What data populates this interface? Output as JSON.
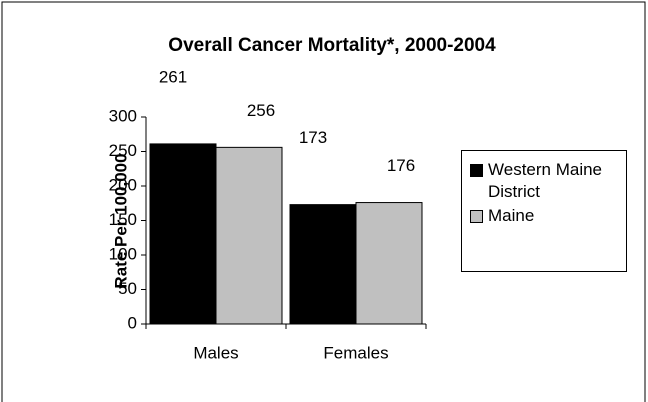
{
  "chart_data": {
    "type": "bar",
    "title": "Overall Cancer Mortality*, 2000-2004",
    "y_label": "Rate Per 100,000",
    "categories": [
      "Males",
      "Females"
    ],
    "series": [
      {
        "name": "Western Maine District",
        "color": "#000000",
        "values": [
          261,
          173
        ]
      },
      {
        "name": "Maine",
        "color": "#c0c0c0",
        "values": [
          256,
          176
        ]
      }
    ],
    "ylim": [
      0,
      300
    ],
    "yticks": [
      0,
      50,
      100,
      150,
      200,
      250,
      300
    ],
    "legend": "right"
  }
}
